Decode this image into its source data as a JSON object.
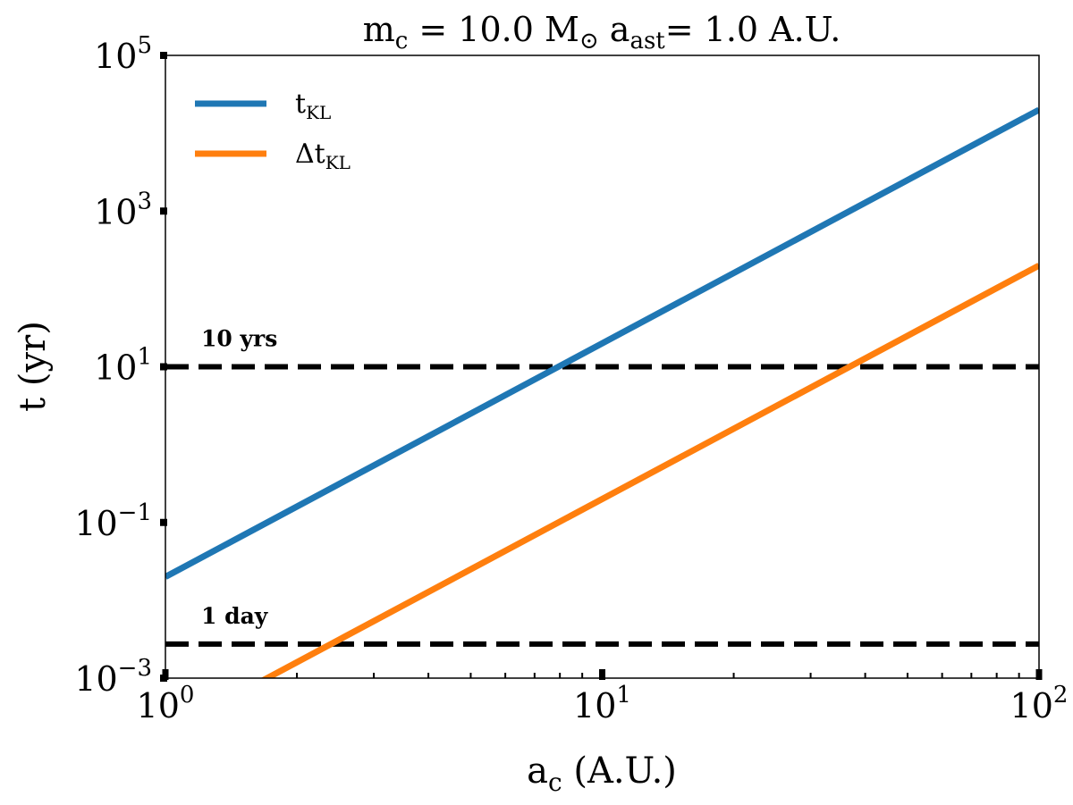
{
  "chart_data": {
    "type": "line",
    "title": {
      "prefix": "m",
      "prefix_sub": "c",
      "middle": " = 10.0 M",
      "sun_symbol": "⊙",
      "space": " a",
      "a_sub": "ast",
      "suffix": "= 1.0 A.U."
    },
    "xlabel": {
      "main": "a",
      "sub": "c",
      "rest": " (A.U.)"
    },
    "ylabel": "t (yr)",
    "xscale": "log",
    "yscale": "log",
    "xlim": [
      1,
      100
    ],
    "ylim": [
      0.001,
      100000
    ],
    "xticks": [
      {
        "value": 1,
        "base": "10",
        "exp": "0"
      },
      {
        "value": 10,
        "base": "10",
        "exp": "1"
      },
      {
        "value": 100,
        "base": "10",
        "exp": "2"
      }
    ],
    "yticks": [
      {
        "value": 0.001,
        "base": "10",
        "exp": "−3"
      },
      {
        "value": 0.1,
        "base": "10",
        "exp": "−1"
      },
      {
        "value": 10,
        "base": "10",
        "exp": "1"
      },
      {
        "value": 1000,
        "base": "10",
        "exp": "3"
      },
      {
        "value": 100000,
        "base": "10",
        "exp": "5"
      }
    ],
    "series": [
      {
        "name": "t",
        "name_sub": "KL",
        "color": "#1f77b4",
        "x": [
          1,
          100
        ],
        "y": [
          0.02,
          20000
        ]
      },
      {
        "name": "Δt",
        "name_sub": "KL",
        "color": "#ff7f0e",
        "x": [
          1,
          100
        ],
        "y": [
          0.0002,
          200
        ]
      }
    ],
    "reference_lines": [
      {
        "y": 10,
        "label": "10 yrs",
        "style": "dashed",
        "color": "#000000"
      },
      {
        "y": 0.00274,
        "label": "1 day",
        "style": "dashed",
        "color": "#000000"
      }
    ],
    "legend_position": "top-left",
    "grid": false
  }
}
